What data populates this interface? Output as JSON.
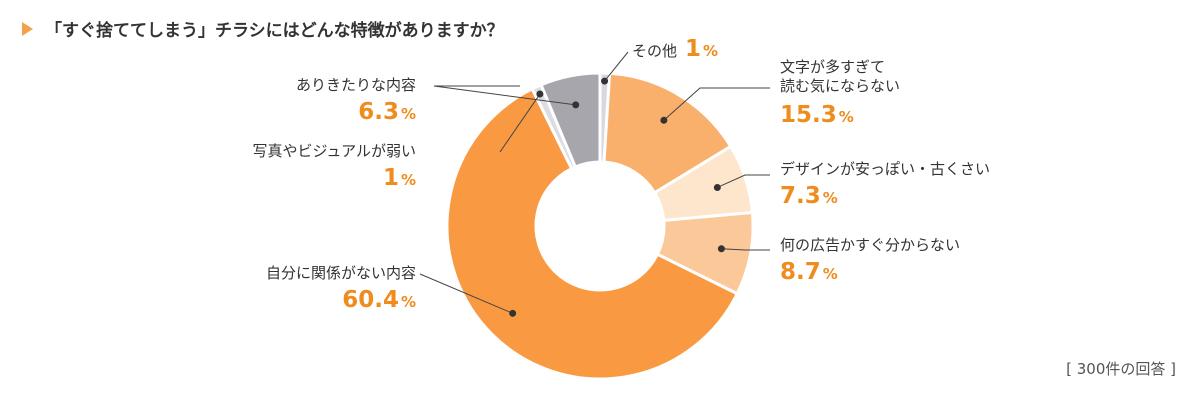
{
  "title": "「すぐ捨ててしまう」チラシにはどんな特徴がありますか？",
  "footnote": "[ 300件の回答 ]",
  "colors": {
    "accent": "#ee8c1e",
    "marker": "#f4a24a"
  },
  "chart_data": {
    "type": "pie",
    "style": "donut",
    "title": "「すぐ捨ててしまう」チラシにはどんな特徴がありますか？",
    "unit": "%",
    "slices": [
      {
        "label": "その他",
        "value": 1,
        "value_text": "1",
        "color": "#d8d8e0"
      },
      {
        "label": "文字が多すぎて読む気にならない",
        "lines": [
          "文字が多すぎて",
          "読む気にならない"
        ],
        "value": 15.3,
        "value_text": "15.3",
        "color": "#f9b06c"
      },
      {
        "label": "デザインが安っぽい・古くさい",
        "value": 7.3,
        "value_text": "7.3",
        "color": "#fde6cc"
      },
      {
        "label": "何の広告かすぐ分からない",
        "value": 8.7,
        "value_text": "8.7",
        "color": "#fbc999"
      },
      {
        "label": "自分に関係がない内容",
        "value": 60.4,
        "value_text": "60.4",
        "color": "#f99a43"
      },
      {
        "label": "写真やビジュアルが弱い",
        "value": 1,
        "value_text": "1",
        "color": "#dcdce4"
      },
      {
        "label": "ありきたりな内容",
        "value": 6.3,
        "value_text": "6.3",
        "color": "#a7a6ad"
      }
    ]
  }
}
